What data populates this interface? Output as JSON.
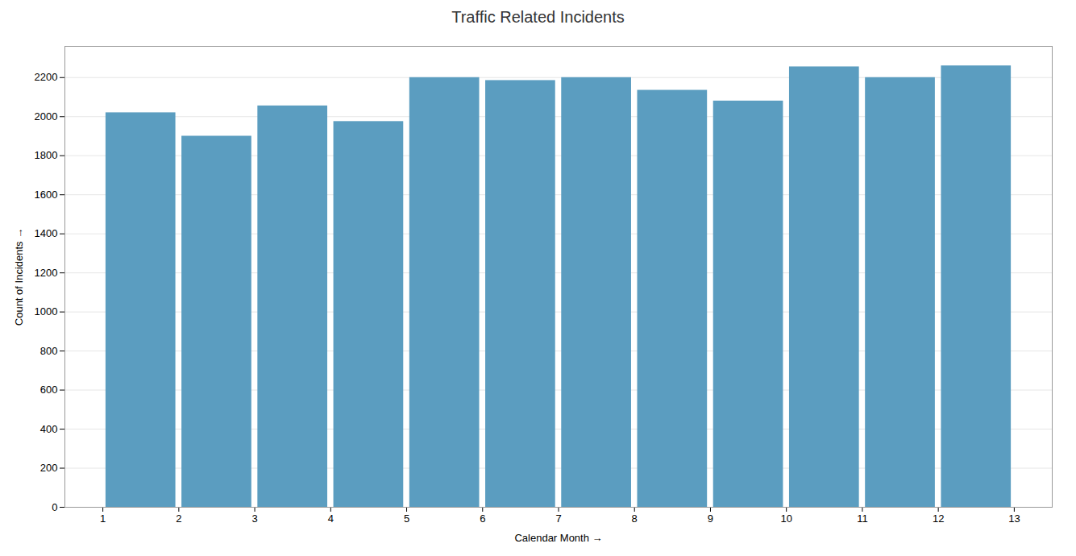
{
  "chart_data": {
    "type": "bar",
    "title": "Traffic Related Incidents",
    "xlabel": "Calendar Month",
    "ylabel": "Count of Incidents",
    "x": [
      1.5,
      2.5,
      3.5,
      4.5,
      5.5,
      6.5,
      7.5,
      8.5,
      9.5,
      10.5,
      11.5,
      12.5
    ],
    "values": [
      2020,
      1900,
      2055,
      1975,
      2200,
      2185,
      2200,
      2135,
      2080,
      2255,
      2200,
      2260
    ],
    "color": "#5b9dc0",
    "xlim": [
      0.5,
      13.5
    ],
    "xticks": [
      1,
      2,
      3,
      4,
      5,
      6,
      7,
      8,
      9,
      10,
      11,
      12,
      13
    ],
    "ylim": [
      0,
      2360
    ],
    "yticks": [
      0,
      200,
      400,
      600,
      800,
      1000,
      1200,
      1400,
      1600,
      1800,
      2000,
      2200
    ],
    "grid": true
  }
}
